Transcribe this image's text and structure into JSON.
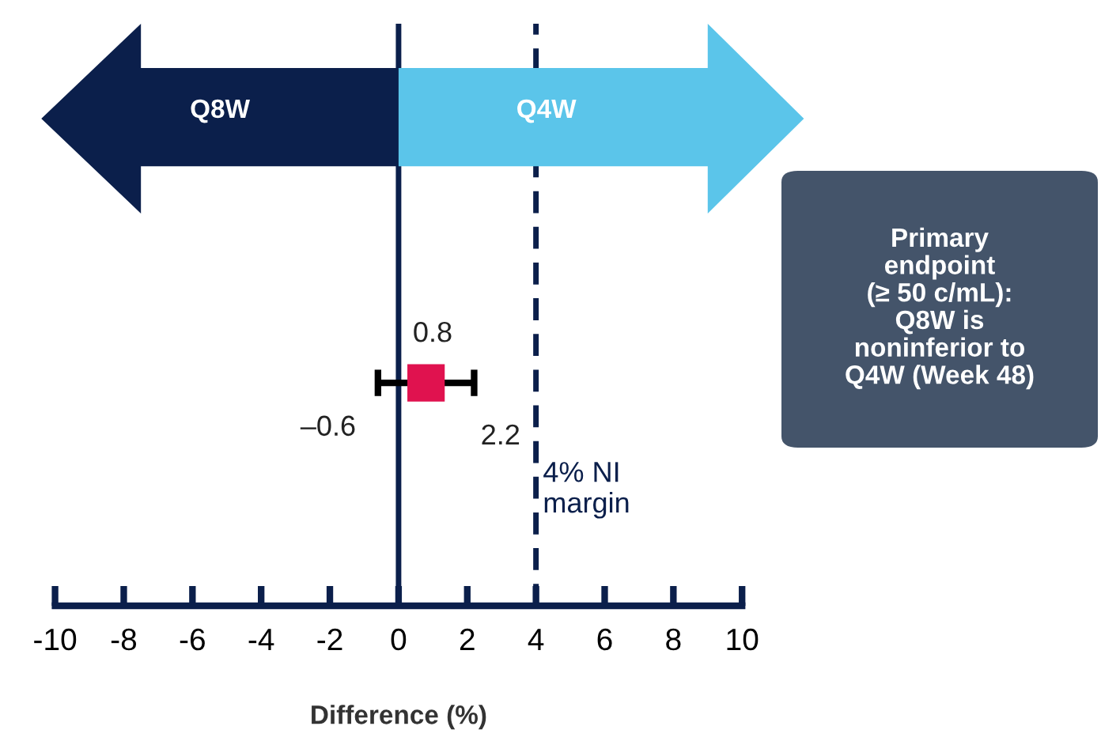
{
  "chart_data": {
    "type": "scatter",
    "orientation": "horizontal",
    "xlabel": "Difference (%)",
    "categories": [
      null
    ],
    "series": [
      {
        "color": "#e0124f",
        "values": [
          0.8
        ],
        "errors": [
          [
            -0.6,
            2.2
          ]
        ],
        "value_labels": [
          "0.8"
        ]
      }
    ],
    "marker": "square",
    "xlim": [
      -10,
      10
    ],
    "xticks": [
      -10,
      -8,
      -6,
      -4,
      -2,
      0,
      2,
      4,
      6,
      8,
      10
    ],
    "ref_lines": [
      {
        "axis": "x",
        "value": 0,
        "color": "#0b1f4b",
        "line_style": "solid"
      },
      {
        "axis": "x",
        "value": 4,
        "label": "4% NI\nmargin",
        "color": "#0b1f4b",
        "line_style": "dashed"
      }
    ],
    "annotations": [
      "Q8W",
      "Q4W",
      "Primary\nendpoint\n(≥ 50 c/mL):\nQ8W is\nnoninferior to\nQ4W (Week 48)",
      "–0.6",
      "2.2"
    ],
    "grid": false,
    "legend": false
  }
}
